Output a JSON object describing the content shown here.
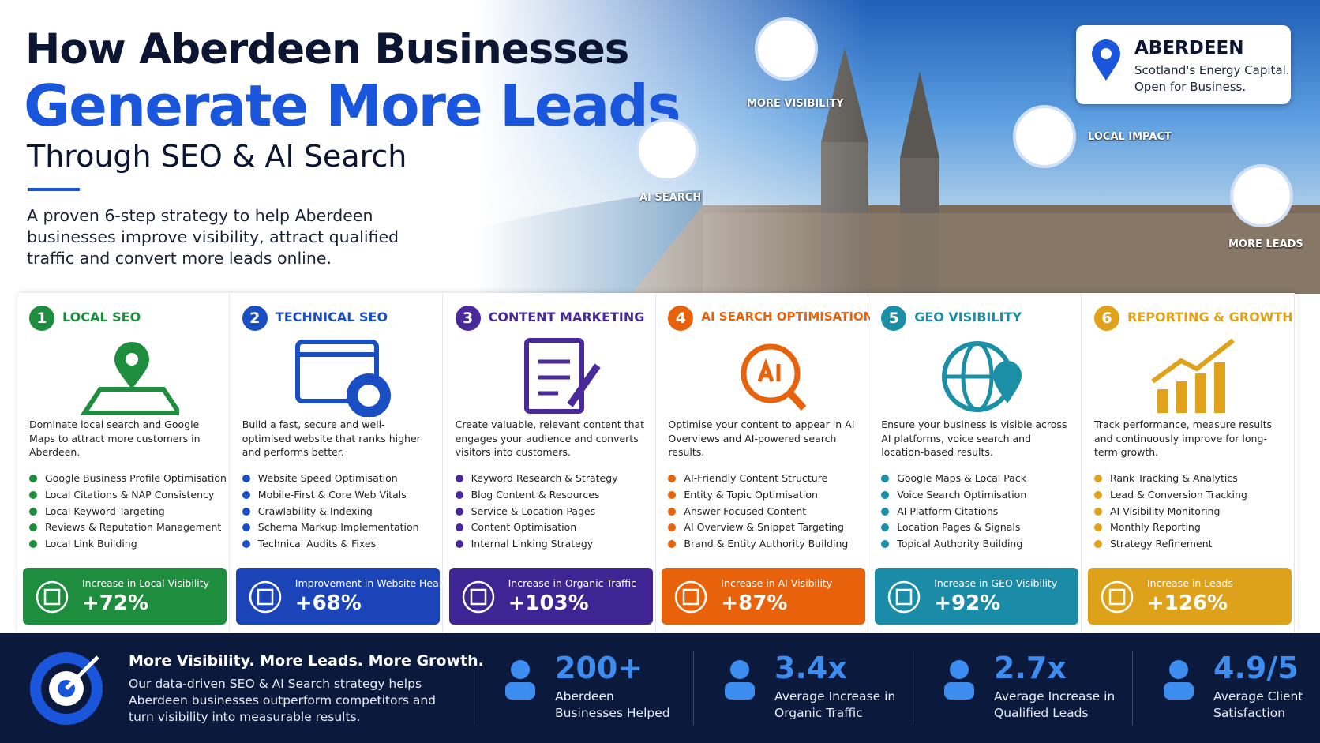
{
  "header": {
    "title_line1": "How Aberdeen Businesses",
    "title_line2": "Generate More Leads",
    "subtitle": "Through SEO & AI Search",
    "description": "A proven 6-step strategy to help Aberdeen businesses improve visibility, attract qualified traffic and convert more leads online."
  },
  "bubbles": [
    "MORE VISIBILITY",
    "AI SEARCH",
    "LOCAL IMPACT",
    "MORE LEADS"
  ],
  "location": {
    "city": "ABERDEEN",
    "line1": "Scotland's Energy Capital.",
    "line2": "Open for Business."
  },
  "steps": [
    {
      "number": "1",
      "title": "LOCAL SEO",
      "description": "Dominate local search and Google Maps to attract more customers in Aberdeen.",
      "items": [
        "Google Business Profile Optimisation",
        "Local Citations & NAP Consistency",
        "Local Keyword Targeting",
        "Reviews & Reputation Management",
        "Local Link Building"
      ],
      "stat_label": "Increase in Local Visibility",
      "stat_value": "+72%"
    },
    {
      "number": "2",
      "title": "TECHNICAL SEO",
      "description": "Build a fast, secure and well-optimised website that ranks higher and performs better.",
      "items": [
        "Website Speed Optimisation",
        "Mobile-First & Core Web Vitals",
        "Crawlability & Indexing",
        "Schema Markup Implementation",
        "Technical Audits & Fixes"
      ],
      "stat_label": "Improvement in Website Health",
      "stat_value": "+68%"
    },
    {
      "number": "3",
      "title": "CONTENT MARKETING",
      "description": "Create valuable, relevant content that engages your audience and converts visitors into customers.",
      "items": [
        "Keyword Research & Strategy",
        "Blog Content & Resources",
        "Service & Location Pages",
        "Content Optimisation",
        "Internal Linking Strategy"
      ],
      "stat_label": "Increase in Organic Traffic",
      "stat_value": "+103%"
    },
    {
      "number": "4",
      "title": "AI SEARCH OPTIMISATION",
      "description": "Optimise your content to appear in AI Overviews and AI-powered search results.",
      "items": [
        "AI-Friendly Content Structure",
        "Entity & Topic Optimisation",
        "Answer-Focused Content",
        "AI Overview & Snippet Targeting",
        "Brand & Entity Authority Building"
      ],
      "stat_label": "Increase in AI Visibility",
      "stat_value": "+87%"
    },
    {
      "number": "5",
      "title": "GEO VISIBILITY",
      "description": "Ensure your business is visible across AI platforms, voice search and location-based results.",
      "items": [
        "Google Maps & Local Pack",
        "Voice Search Optimisation",
        "AI Platform Citations",
        "Location Pages & Signals",
        "Topical Authority Building"
      ],
      "stat_label": "Increase in GEO Visibility",
      "stat_value": "+92%"
    },
    {
      "number": "6",
      "title": "REPORTING & GROWTH",
      "description": "Track performance, measure results and continuously improve for long-term growth.",
      "items": [
        "Rank Tracking & Analytics",
        "Lead & Conversion Tracking",
        "AI Visibility Monitoring",
        "Monthly Reporting",
        "Strategy Refinement"
      ],
      "stat_label": "Increase in Leads",
      "stat_value": "+126%"
    }
  ],
  "footer": {
    "headline": "More Visibility. More Leads. More Growth.",
    "text": "Our data-driven SEO & AI Search strategy helps Aberdeen businesses outperform competitors and turn visibility into measurable results.",
    "stats": [
      {
        "value": "200+",
        "label": "Aberdeen Businesses Helped"
      },
      {
        "value": "3.4x",
        "label": "Average Increase in Organic Traffic"
      },
      {
        "value": "2.7x",
        "label": "Average Increase in Qualified Leads"
      },
      {
        "value": "4.9/5",
        "label": "Average Client Satisfaction"
      }
    ]
  }
}
